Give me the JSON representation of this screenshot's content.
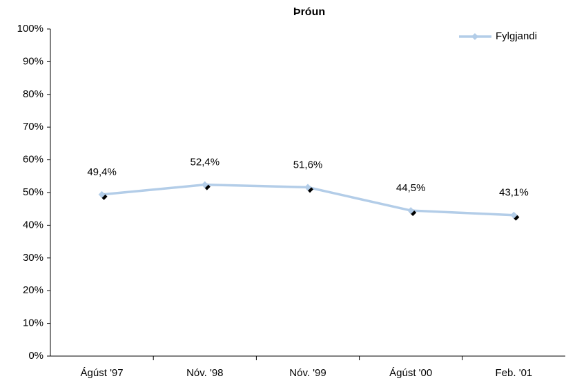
{
  "chart_data": {
    "type": "line",
    "title": "Þróun",
    "categories": [
      "Ágúst '97",
      "Nóv. '98",
      "Nóv. '99",
      "Ágúst '00",
      "Feb. '01"
    ],
    "series": [
      {
        "name": "Fylgjandi",
        "color": "#b3cde8",
        "values": [
          49.4,
          52.4,
          51.6,
          44.5,
          43.1
        ],
        "value_labels": [
          "49,4%",
          "52,4%",
          "51,6%",
          "44,5%",
          "43,1%"
        ]
      }
    ],
    "ylim": [
      0,
      100
    ],
    "yticks": [
      {
        "value": 0,
        "label": "0%"
      },
      {
        "value": 10,
        "label": "10%"
      },
      {
        "value": 20,
        "label": "20%"
      },
      {
        "value": 30,
        "label": "30%"
      },
      {
        "value": 40,
        "label": "40%"
      },
      {
        "value": 50,
        "label": "50%"
      },
      {
        "value": 60,
        "label": "60%"
      },
      {
        "value": 70,
        "label": "70%"
      },
      {
        "value": 80,
        "label": "80%"
      },
      {
        "value": 90,
        "label": "90%"
      },
      {
        "value": 100,
        "label": "100%"
      }
    ],
    "grid": false,
    "legend": "top-right"
  }
}
